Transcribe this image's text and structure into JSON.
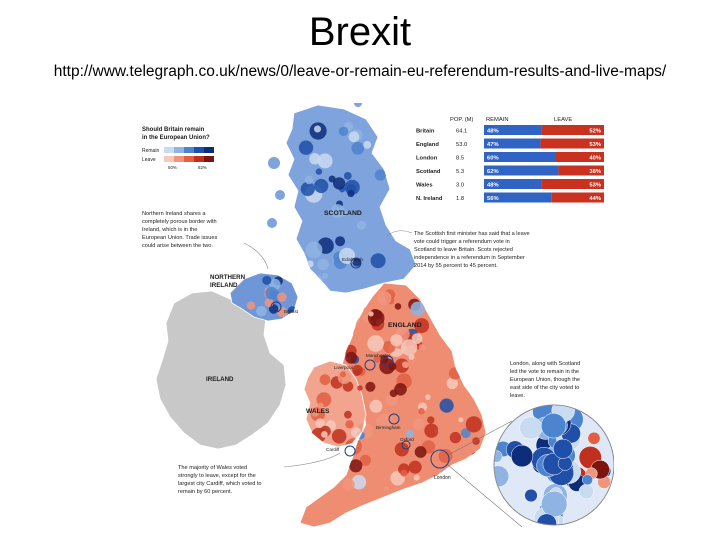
{
  "slide": {
    "title": "Brexit",
    "url": "http://www.telegraph.co.uk/news/0/leave-or-remain-eu-referendum-results-and-live-maps/"
  },
  "legend": {
    "question": [
      "Should Britain remain",
      "in the European Union?"
    ],
    "remain_label": "Remain",
    "leave_label": "Leave",
    "scale_min": "50%",
    "scale_max": "82%",
    "remain_colors": [
      "#c9dbf1",
      "#8fb4e3",
      "#4d84cf",
      "#1f4fa8",
      "#0d2d7a"
    ],
    "leave_colors": [
      "#f7c9bb",
      "#f0957c",
      "#e25f44",
      "#c0301f",
      "#7d1410"
    ]
  },
  "results_table": {
    "headers": {
      "pop": "POP. (M)",
      "remain": "REMAIN",
      "leave": "LEAVE"
    },
    "rows": [
      {
        "region": "Britain",
        "pop": "64.1",
        "remain": "48%",
        "leave": "52%",
        "remain_frac": 0.48
      },
      {
        "region": "England",
        "pop": "53.0",
        "remain": "47%",
        "leave": "53%",
        "remain_frac": 0.47
      },
      {
        "region": "London",
        "pop": "8.5",
        "remain": "60%",
        "leave": "40%",
        "remain_frac": 0.6
      },
      {
        "region": "Scotland",
        "pop": "5.3",
        "remain": "62%",
        "leave": "38%",
        "remain_frac": 0.62
      },
      {
        "region": "Wales",
        "pop": "3.0",
        "remain": "48%",
        "leave": "53%",
        "remain_frac": 0.48
      },
      {
        "region": "N. Ireland",
        "pop": "1.8",
        "remain": "56%",
        "leave": "44%",
        "remain_frac": 0.56
      }
    ],
    "remain_color": "#2f63c4",
    "leave_color": "#c8321f"
  },
  "map_labels": {
    "scotland": "SCOTLAND",
    "edinburgh": "Edinburgh",
    "northern_ireland": [
      "NORTHERN",
      "IRELAND"
    ],
    "belfast": "Belfast",
    "england": "ENGLAND",
    "manchester": "Manchester",
    "liverpool": "Liverpool",
    "ireland": "IRELAND",
    "wales": "WALES",
    "birmingham": "Birmingham",
    "oxford": "Oxford",
    "cardiff": "Cardiff",
    "london": "London"
  },
  "annotations": {
    "northern_ireland": [
      "Northern Ireland shares a",
      "completely porous border with",
      "Ireland, which is in the",
      "European Union. Trade issues",
      "could arise between the two."
    ],
    "scotland": [
      "The Scottish first minister has said that a leave",
      "vote could trigger a referendum vote in",
      "Scotland to leave Britain. Scots rejected",
      "independence in a referendum in September",
      "2014 by 55 percent to 45 percent."
    ],
    "london": [
      "London, along with Scotland",
      "led the vote to remain in the",
      "European Union, though the",
      "east side of the city voted to",
      "leave."
    ],
    "wales": [
      "The majority of Wales voted",
      "strongly to leave, except for the",
      "largest city Cardiff, which voted to",
      "remain by 60 percent."
    ]
  },
  "map_colors": {
    "ireland": "#c8c8c8",
    "scotland_base": "#7ea3dd",
    "scotland_dark": "#3a6bc0",
    "ni_base": "#6f96d6",
    "england_base": "#ef8d72",
    "england_dark": "#cc3f26",
    "wales_base": "#f2a48e",
    "london_remain": "#2f5fbf"
  }
}
